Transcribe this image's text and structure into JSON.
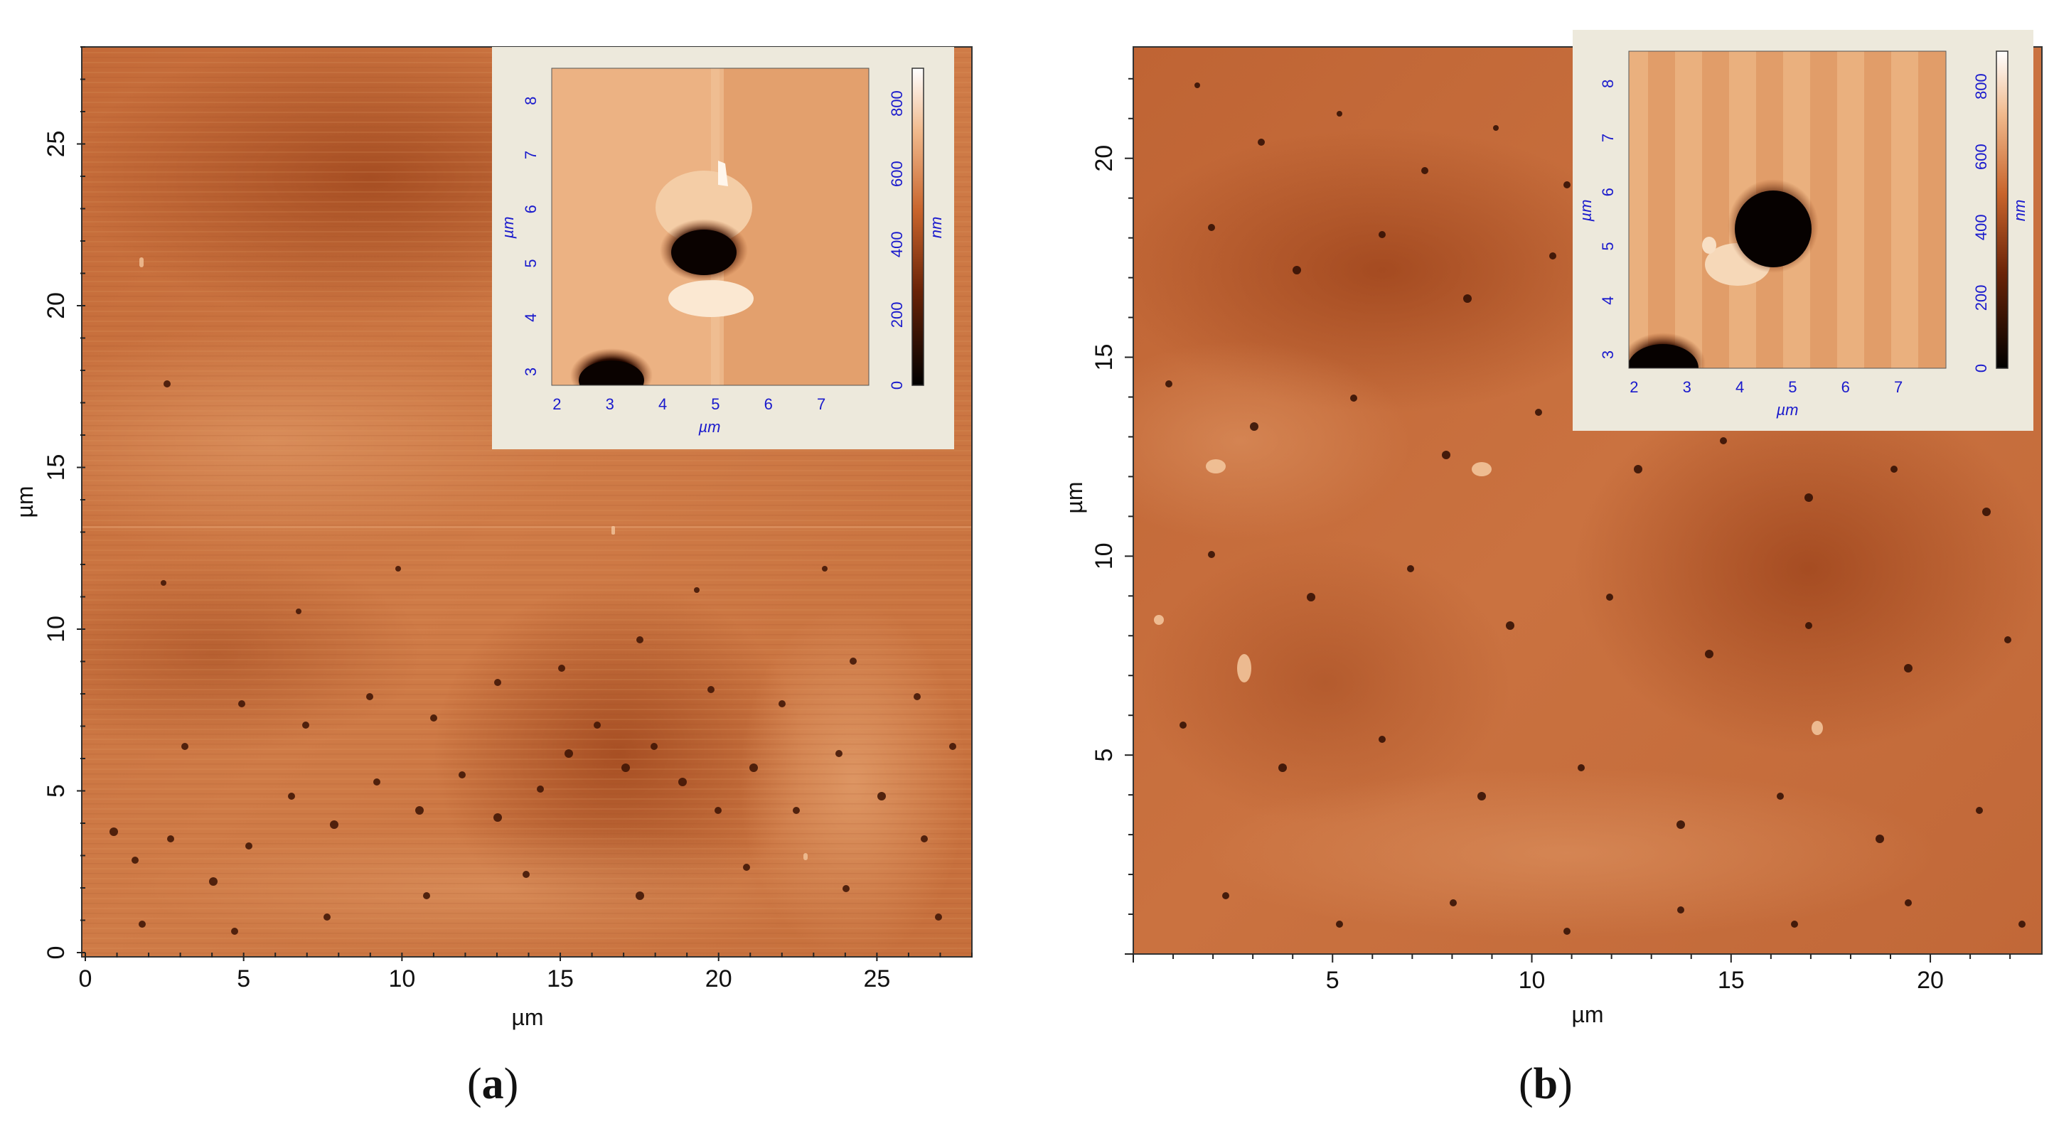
{
  "figure": {
    "panels": [
      {
        "id": "a",
        "caption_open": "(",
        "caption_letter": "a",
        "caption_close": ")",
        "main_map": {
          "x_label": "µm",
          "y_label": "µm",
          "x_ticks": [
            "0",
            "5",
            "10",
            "15",
            "20",
            "25"
          ],
          "y_ticks": [
            "0",
            "5",
            "10",
            "15",
            "20",
            "25"
          ],
          "x_range_um": [
            0,
            28
          ],
          "y_range_um": [
            0,
            28
          ]
        },
        "inset": {
          "x_label": "µm",
          "y_label": "µm",
          "x_ticks": [
            "2",
            "3",
            "4",
            "5",
            "6",
            "7"
          ],
          "y_ticks": [
            "3",
            "4",
            "5",
            "6",
            "7",
            "8"
          ],
          "colorbar_ticks": [
            "0",
            "200",
            "400",
            "600",
            "800"
          ],
          "colorbar_unit": "nm"
        }
      },
      {
        "id": "b",
        "caption_open": "(",
        "caption_letter": "b",
        "caption_close": ")",
        "main_map": {
          "x_label": "µm",
          "y_label": "µm",
          "x_ticks": [
            "5",
            "10",
            "15",
            "20"
          ],
          "y_ticks": [
            "5",
            "10",
            "15",
            "20"
          ],
          "x_range_um": [
            0,
            22.8
          ],
          "y_range_um": [
            0,
            22.8
          ]
        },
        "inset": {
          "x_label": "µm",
          "y_label": "µm",
          "x_ticks": [
            "2",
            "3",
            "4",
            "5",
            "6",
            "7"
          ],
          "y_ticks": [
            "3",
            "4",
            "5",
            "6",
            "7",
            "8"
          ],
          "colorbar_ticks": [
            "0",
            "200",
            "400",
            "600",
            "800"
          ],
          "colorbar_unit": "nm"
        }
      }
    ],
    "colors": {
      "surface": "#c8703e",
      "surface_dark": "#8e3a15",
      "surface_light": "#e8a774",
      "inset_surface": "#e8aa78",
      "inset_frame": "#ede9dc",
      "inset_text": "#1a1acc",
      "axis_text": "#111111"
    }
  }
}
